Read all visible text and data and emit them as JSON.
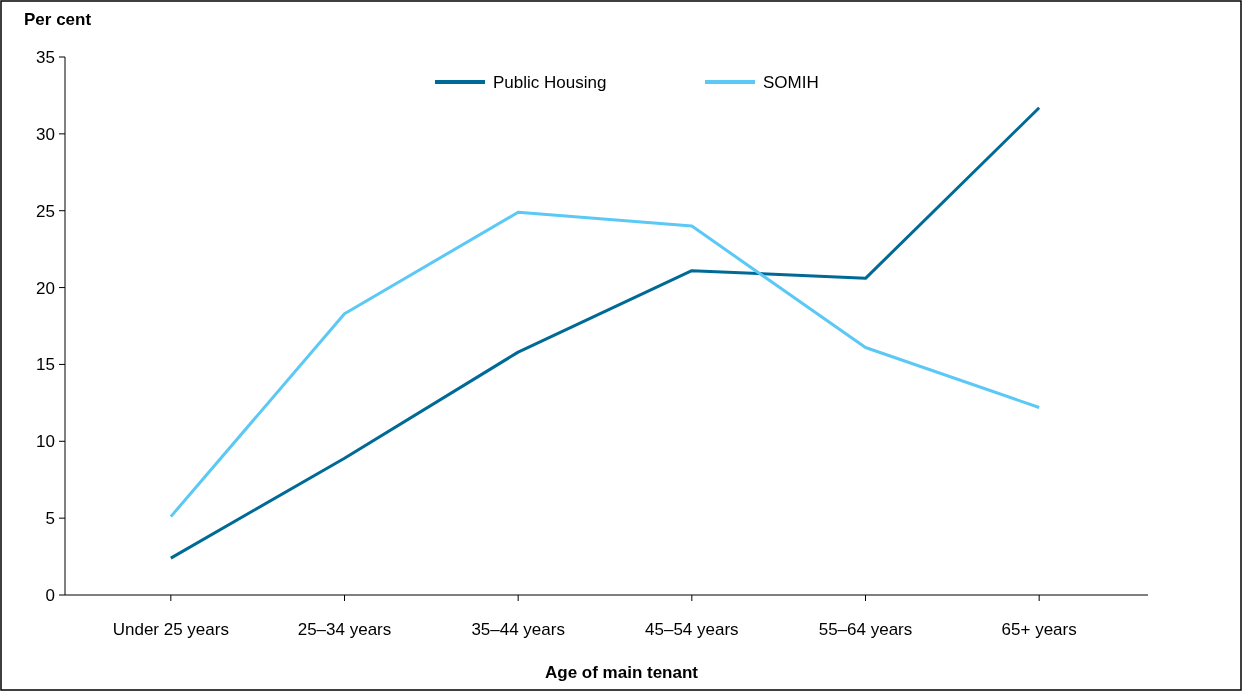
{
  "chart_data": {
    "type": "line",
    "ylabel": "Per cent",
    "xlabel": "Age of main tenant",
    "categories": [
      "Under 25 years",
      "25–34 years",
      "35–44 years",
      "45–54 years",
      "55–64 years",
      "65+ years"
    ],
    "series": [
      {
        "name": "Public Housing",
        "color": "#006a96",
        "values": [
          2.4,
          8.9,
          15.8,
          21.1,
          20.6,
          31.7
        ]
      },
      {
        "name": "SOMIH",
        "color": "#5bc8f5",
        "values": [
          5.1,
          18.3,
          24.9,
          24.0,
          16.1,
          12.2
        ]
      }
    ],
    "ylim": [
      0,
      35
    ],
    "yticks": [
      0,
      5,
      10,
      15,
      20,
      25,
      30,
      35
    ],
    "grid": false,
    "legend": "top",
    "marker": "none",
    "line_style": "solid"
  }
}
